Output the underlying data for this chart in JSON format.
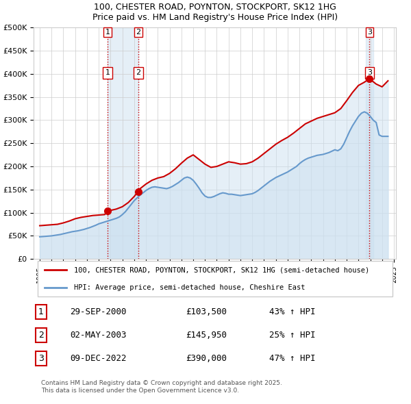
{
  "title": "100, CHESTER ROAD, POYNTON, STOCKPORT, SK12 1HG",
  "subtitle": "Price paid vs. HM Land Registry's House Price Index (HPI)",
  "ylim": [
    0,
    500000
  ],
  "yticks": [
    0,
    50000,
    100000,
    150000,
    200000,
    250000,
    300000,
    350000,
    400000,
    450000,
    500000
  ],
  "xlabel": "",
  "legend_line1": "100, CHESTER ROAD, POYNTON, STOCKPORT, SK12 1HG (semi-detached house)",
  "legend_line2": "HPI: Average price, semi-detached house, Cheshire East",
  "transactions": [
    {
      "label": "1",
      "date": "29-SEP-2000",
      "price": 103500,
      "pct": "43% ↑ HPI",
      "x": 2000.75
    },
    {
      "label": "2",
      "date": "02-MAY-2003",
      "price": 145950,
      "pct": "25% ↑ HPI",
      "x": 2003.34
    },
    {
      "label": "3",
      "date": "09-DEC-2022",
      "price": 390000,
      "pct": "47% ↑ HPI",
      "x": 2022.94
    }
  ],
  "vline_color": "#cc0000",
  "vline_style": ":",
  "shade_color": "#cce0f0",
  "house_color": "#cc0000",
  "hpi_color": "#6699cc",
  "footer": "Contains HM Land Registry data © Crown copyright and database right 2025.\nThis data is licensed under the Open Government Licence v3.0.",
  "hpi_data_x": [
    1995.0,
    1995.25,
    1995.5,
    1995.75,
    1996.0,
    1996.25,
    1996.5,
    1996.75,
    1997.0,
    1997.25,
    1997.5,
    1997.75,
    1998.0,
    1998.25,
    1998.5,
    1998.75,
    1999.0,
    1999.25,
    1999.5,
    1999.75,
    2000.0,
    2000.25,
    2000.5,
    2000.75,
    2001.0,
    2001.25,
    2001.5,
    2001.75,
    2002.0,
    2002.25,
    2002.5,
    2002.75,
    2003.0,
    2003.25,
    2003.5,
    2003.75,
    2004.0,
    2004.25,
    2004.5,
    2004.75,
    2005.0,
    2005.25,
    2005.5,
    2005.75,
    2006.0,
    2006.25,
    2006.5,
    2006.75,
    2007.0,
    2007.25,
    2007.5,
    2007.75,
    2008.0,
    2008.25,
    2008.5,
    2008.75,
    2009.0,
    2009.25,
    2009.5,
    2009.75,
    2010.0,
    2010.25,
    2010.5,
    2010.75,
    2011.0,
    2011.25,
    2011.5,
    2011.75,
    2012.0,
    2012.25,
    2012.5,
    2012.75,
    2013.0,
    2013.25,
    2013.5,
    2013.75,
    2014.0,
    2014.25,
    2014.5,
    2014.75,
    2015.0,
    2015.25,
    2015.5,
    2015.75,
    2016.0,
    2016.25,
    2016.5,
    2016.75,
    2017.0,
    2017.25,
    2017.5,
    2017.75,
    2018.0,
    2018.25,
    2018.5,
    2018.75,
    2019.0,
    2019.25,
    2019.5,
    2019.75,
    2020.0,
    2020.25,
    2020.5,
    2020.75,
    2021.0,
    2021.25,
    2021.5,
    2021.75,
    2022.0,
    2022.25,
    2022.5,
    2022.75,
    2023.0,
    2023.25,
    2023.5,
    2023.75,
    2024.0,
    2024.25,
    2024.5
  ],
  "hpi_data_y": [
    48000,
    48500,
    49000,
    49500,
    50000,
    51000,
    52000,
    53000,
    54500,
    56000,
    57500,
    59000,
    60000,
    61000,
    62500,
    64000,
    66000,
    68000,
    70500,
    73000,
    76000,
    78000,
    80000,
    82000,
    84000,
    86000,
    88000,
    91000,
    96000,
    102000,
    110000,
    118000,
    126000,
    132000,
    138000,
    143000,
    148000,
    152000,
    155000,
    156000,
    155000,
    154000,
    153000,
    152000,
    154000,
    157000,
    161000,
    165000,
    170000,
    175000,
    177000,
    175000,
    170000,
    162000,
    153000,
    143000,
    136000,
    133000,
    133000,
    135000,
    138000,
    141000,
    143000,
    142000,
    140000,
    140000,
    139000,
    138000,
    137000,
    138000,
    139000,
    140000,
    141000,
    144000,
    148000,
    153000,
    158000,
    163000,
    168000,
    172000,
    176000,
    179000,
    182000,
    185000,
    188000,
    192000,
    196000,
    200000,
    206000,
    211000,
    215000,
    218000,
    220000,
    222000,
    224000,
    225000,
    226000,
    228000,
    230000,
    233000,
    236000,
    234000,
    238000,
    248000,
    262000,
    276000,
    288000,
    298000,
    308000,
    315000,
    318000,
    315000,
    308000,
    300000,
    295000,
    268000,
    265000,
    265000,
    265000
  ],
  "house_data_x": [
    1995.0,
    1995.5,
    1996.0,
    1996.5,
    1997.0,
    1997.5,
    1998.0,
    1998.5,
    1999.0,
    1999.5,
    2000.0,
    2000.5,
    2000.75,
    2001.0,
    2001.5,
    2002.0,
    2002.5,
    2003.0,
    2003.34,
    2003.5,
    2004.0,
    2004.5,
    2005.0,
    2005.5,
    2006.0,
    2006.5,
    2007.0,
    2007.5,
    2008.0,
    2008.5,
    2009.0,
    2009.5,
    2010.0,
    2010.5,
    2011.0,
    2011.5,
    2012.0,
    2012.5,
    2013.0,
    2013.5,
    2014.0,
    2014.5,
    2015.0,
    2015.5,
    2016.0,
    2016.5,
    2017.0,
    2017.5,
    2018.0,
    2018.5,
    2019.0,
    2019.5,
    2020.0,
    2020.5,
    2021.0,
    2021.5,
    2022.0,
    2022.5,
    2022.94,
    2023.0,
    2023.5,
    2024.0,
    2024.5
  ],
  "house_data_y": [
    72000,
    73000,
    74000,
    75000,
    78000,
    82000,
    87000,
    90000,
    92000,
    94000,
    95000,
    96000,
    103500,
    105000,
    108000,
    113000,
    122000,
    135000,
    145950,
    152000,
    162000,
    170000,
    175000,
    178000,
    185000,
    195000,
    207000,
    218000,
    225000,
    215000,
    205000,
    198000,
    200000,
    205000,
    210000,
    208000,
    205000,
    206000,
    210000,
    218000,
    228000,
    238000,
    248000,
    256000,
    263000,
    272000,
    282000,
    292000,
    298000,
    304000,
    308000,
    312000,
    316000,
    325000,
    342000,
    360000,
    375000,
    382000,
    390000,
    388000,
    378000,
    372000,
    385000
  ],
  "xticks": [
    1995,
    1996,
    1997,
    1998,
    1999,
    2000,
    2001,
    2002,
    2003,
    2004,
    2005,
    2006,
    2007,
    2008,
    2009,
    2010,
    2011,
    2012,
    2013,
    2014,
    2015,
    2016,
    2017,
    2018,
    2019,
    2020,
    2021,
    2022,
    2023,
    2024,
    2025
  ]
}
